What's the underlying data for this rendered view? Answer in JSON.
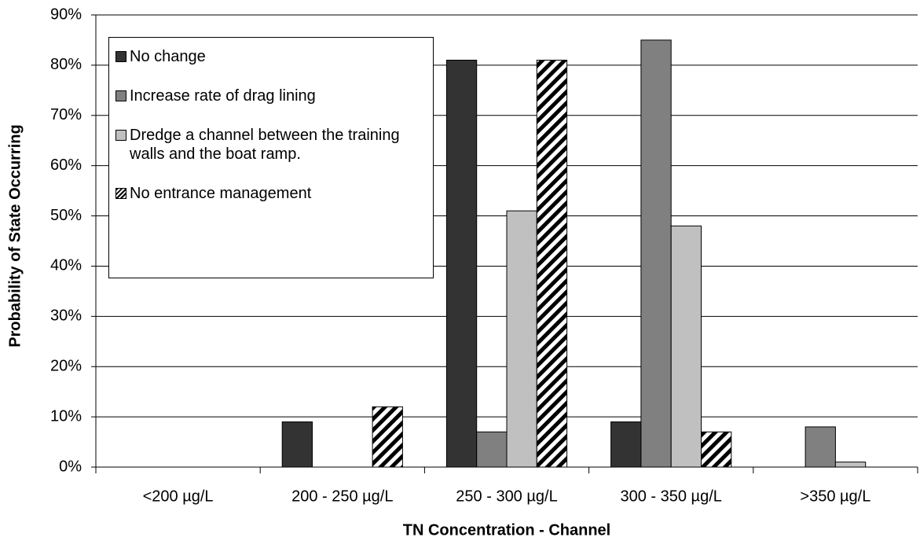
{
  "chart_data": {
    "type": "bar",
    "x_label": "TN Concentration - Channel",
    "y_label": "Probability of State Occurring",
    "categories": [
      "<200 µg/L",
      "200 - 250 µg/L",
      "250 - 300 µg/L",
      "300 - 350 µg/L",
      ">350 µg/L"
    ],
    "series": [
      {
        "name": "No change",
        "color": "#333333",
        "values": [
          0,
          9,
          81,
          9,
          0
        ]
      },
      {
        "name": "Increase rate of drag lining",
        "color": "#808080",
        "values": [
          0,
          0,
          7,
          85,
          8
        ]
      },
      {
        "name": "Dredge a channel between the training walls and the boat ramp.",
        "color": "#c0c0c0",
        "values": [
          0,
          0,
          51,
          48,
          1
        ]
      },
      {
        "name": "No entrance management",
        "color": "#000000",
        "hatch": true,
        "values": [
          0,
          12,
          81,
          7,
          0
        ]
      }
    ],
    "ylim": [
      0,
      90
    ],
    "yticks": [
      {
        "value": 0,
        "label": "0%"
      },
      {
        "value": 10,
        "label": "10%"
      },
      {
        "value": 20,
        "label": "20%"
      },
      {
        "value": 30,
        "label": "30%"
      },
      {
        "value": 40,
        "label": "40%"
      },
      {
        "value": 50,
        "label": "50%"
      },
      {
        "value": 60,
        "label": "60%"
      },
      {
        "value": 70,
        "label": "70%"
      },
      {
        "value": 80,
        "label": "80%"
      },
      {
        "value": 90,
        "label": "90%"
      }
    ],
    "grid": true,
    "legend": "upper left"
  }
}
